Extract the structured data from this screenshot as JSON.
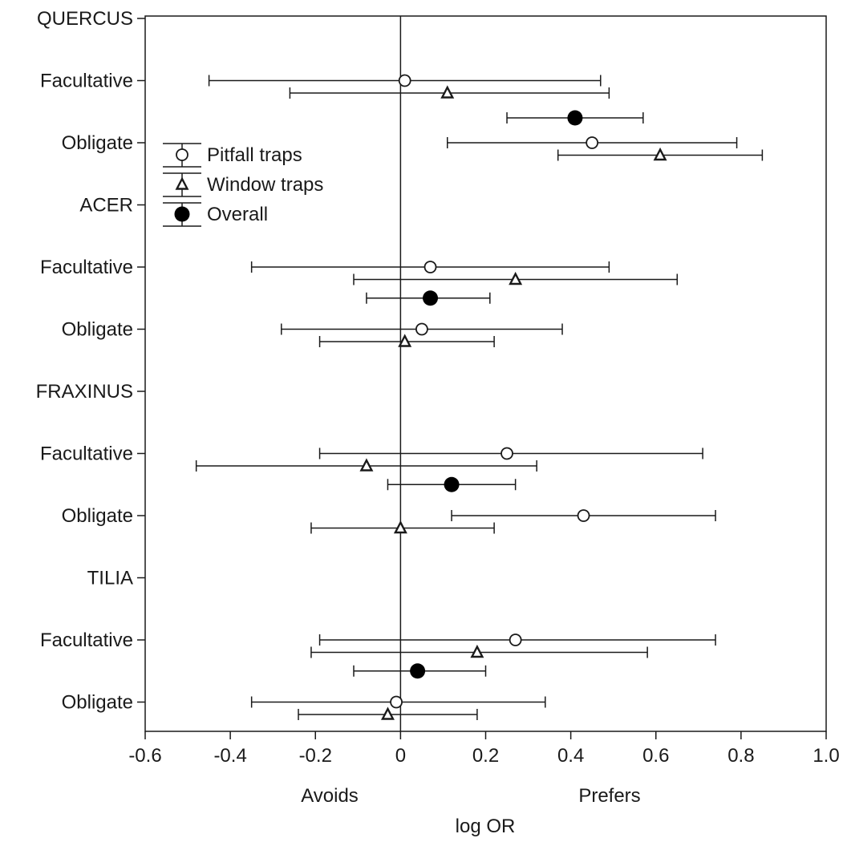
{
  "chart_data": {
    "type": "scatter",
    "subtype": "forest-plot",
    "xlabel": "log OR",
    "xlim": [
      -0.6,
      1.0
    ],
    "xticks": [
      "-0.6",
      "-0.4",
      "-0.2",
      "0",
      "0.2",
      "0.4",
      "0.6",
      "0.8",
      "1.0"
    ],
    "annotations": {
      "left": "Avoids",
      "right": "Prefers"
    },
    "reference_line": 0,
    "grid": false,
    "legend_position": "upper-left",
    "legend": [
      {
        "key": "pitfall",
        "label": "Pitfall traps",
        "marker": "open-circle"
      },
      {
        "key": "window",
        "label": "Window traps",
        "marker": "open-triangle"
      },
      {
        "key": "overall",
        "label": "Overall",
        "marker": "filled-circle"
      }
    ],
    "row_labels": [
      {
        "label": "QUERCUS",
        "kind": "group"
      },
      {
        "label": "Facultative",
        "kind": "item"
      },
      {
        "label": "Obligate",
        "kind": "item"
      },
      {
        "label": "ACER",
        "kind": "group"
      },
      {
        "label": "Facultative",
        "kind": "item"
      },
      {
        "label": "Obligate",
        "kind": "item"
      },
      {
        "label": "FRAXINUS",
        "kind": "group"
      },
      {
        "label": "Facultative",
        "kind": "item"
      },
      {
        "label": "Obligate",
        "kind": "item"
      },
      {
        "label": "TILIA",
        "kind": "group"
      },
      {
        "label": "Facultative",
        "kind": "item"
      },
      {
        "label": "Obligate",
        "kind": "item"
      }
    ],
    "series": [
      {
        "name": "Pitfall traps",
        "marker": "open-circle",
        "points": [
          {
            "row": 1.0,
            "est": 0.01,
            "lo": -0.45,
            "hi": 0.47
          },
          {
            "row": 2.0,
            "est": 0.45,
            "lo": 0.11,
            "hi": 0.79
          },
          {
            "row": 4.0,
            "est": 0.07,
            "lo": -0.35,
            "hi": 0.49
          },
          {
            "row": 5.0,
            "est": 0.05,
            "lo": -0.28,
            "hi": 0.38
          },
          {
            "row": 7.0,
            "est": 0.25,
            "lo": -0.19,
            "hi": 0.71
          },
          {
            "row": 8.0,
            "est": 0.43,
            "lo": 0.12,
            "hi": 0.74
          },
          {
            "row": 10.0,
            "est": 0.27,
            "lo": -0.19,
            "hi": 0.74
          },
          {
            "row": 11.0,
            "est": -0.01,
            "lo": -0.35,
            "hi": 0.34
          }
        ]
      },
      {
        "name": "Window traps",
        "marker": "open-triangle",
        "points": [
          {
            "row": 1.2,
            "est": 0.11,
            "lo": -0.26,
            "hi": 0.49
          },
          {
            "row": 2.2,
            "est": 0.61,
            "lo": 0.37,
            "hi": 0.85
          },
          {
            "row": 4.2,
            "est": 0.27,
            "lo": -0.11,
            "hi": 0.65
          },
          {
            "row": 5.2,
            "est": 0.01,
            "lo": -0.19,
            "hi": 0.22
          },
          {
            "row": 7.2,
            "est": -0.08,
            "lo": -0.48,
            "hi": 0.32
          },
          {
            "row": 8.2,
            "est": 0.0,
            "lo": -0.21,
            "hi": 0.22
          },
          {
            "row": 10.2,
            "est": 0.18,
            "lo": -0.21,
            "hi": 0.58
          },
          {
            "row": 11.2,
            "est": -0.03,
            "lo": -0.24,
            "hi": 0.18
          }
        ]
      },
      {
        "name": "Overall",
        "marker": "filled-circle",
        "points": [
          {
            "row": 1.6,
            "est": 0.41,
            "lo": 0.25,
            "hi": 0.57
          },
          {
            "row": 4.5,
            "est": 0.07,
            "lo": -0.08,
            "hi": 0.21
          },
          {
            "row": 7.5,
            "est": 0.12,
            "lo": -0.03,
            "hi": 0.27
          },
          {
            "row": 10.5,
            "est": 0.04,
            "lo": -0.11,
            "hi": 0.2
          }
        ]
      }
    ]
  }
}
